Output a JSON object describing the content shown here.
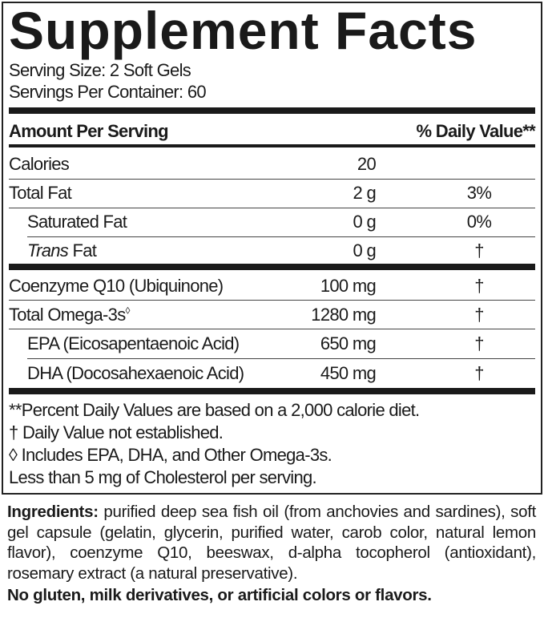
{
  "title": "Supplement Facts",
  "serving_size": "Serving Size: 2 Soft Gels",
  "servings_per_container": "Servings Per Container: 60",
  "header": {
    "amount": "Amount Per Serving",
    "dv": "% Daily Value**"
  },
  "rows": [
    {
      "name": "Calories",
      "amount": "20",
      "dv": ""
    },
    {
      "name": "Total Fat",
      "amount": "2 g",
      "dv": "3%"
    },
    {
      "name": "Saturated Fat",
      "amount": "0 g",
      "dv": "0%"
    },
    {
      "name_italic": "Trans",
      "name": " Fat",
      "amount": "0 g",
      "dv": "†"
    },
    {
      "name": "Coenzyme Q10 (Ubiquinone)",
      "amount": "100 mg",
      "dv": "†"
    },
    {
      "name": "Total Omega-3s",
      "sup": "◊",
      "amount": "1280 mg",
      "dv": "†"
    },
    {
      "name": "EPA (Eicosapentaenoic Acid)",
      "amount": "650 mg",
      "dv": "†"
    },
    {
      "name": "DHA (Docosahexaenoic Acid)",
      "amount": "450 mg",
      "dv": "†"
    }
  ],
  "footnotes": [
    "**Percent Daily Values are based on a 2,000 calorie diet.",
    "† Daily Value not established.",
    "◊ Includes EPA, DHA, and Other Omega-3s.",
    "Less than 5 mg of Cholesterol per serving."
  ],
  "ingredients": {
    "label": "Ingredients:",
    "text": " purified deep sea fish oil (from anchovies and sardines), soft gel capsule (gelatin, glycerin, purified water, carob color, natural lemon flavor), coenzyme Q10, beeswax, d-alpha tocopherol (antioxidant), rosemary extract (a natural preservative)."
  },
  "allergen_statement": "No gluten, milk derivatives, or artificial colors or flavors."
}
